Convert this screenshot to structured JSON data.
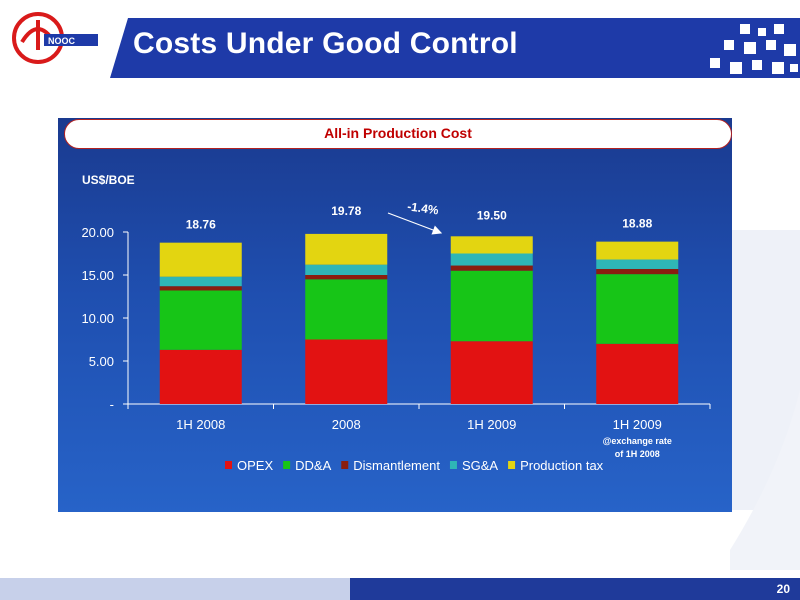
{
  "slide": {
    "title": "Costs Under Good Control",
    "page_number": "20"
  },
  "colors": {
    "title_bar": "#1e3aa8",
    "panel": "#1f4fb0",
    "opex": "#e21212",
    "dda": "#17c517",
    "dismantlement": "#8a1e0f",
    "sga": "#2fb6b6",
    "production_tax": "#e3d511"
  },
  "chart_data": {
    "type": "bar",
    "stacked": true,
    "title": "All-in Production Cost",
    "ylabel": "US$/BOE",
    "ylim": [
      0,
      20
    ],
    "yticks": [
      0,
      5,
      10,
      15,
      20
    ],
    "ytick_labels": [
      "-",
      "5.00",
      "10.00",
      "15.00",
      "20.00"
    ],
    "categories": [
      "1H 2008",
      "2008",
      "1H 2009",
      "1H 2009"
    ],
    "category_note": [
      "",
      "",
      "",
      "@exchange rate",
      "of 1H 2008"
    ],
    "totals": [
      "18.76",
      "19.78",
      "19.50",
      "18.88"
    ],
    "series": [
      {
        "name": "OPEX",
        "values": [
          6.3,
          7.5,
          7.3,
          7.0
        ]
      },
      {
        "name": "DD&A",
        "values": [
          6.9,
          7.0,
          8.2,
          8.1
        ]
      },
      {
        "name": "Dismantlement",
        "values": [
          0.5,
          0.5,
          0.6,
          0.6
        ]
      },
      {
        "name": "SG&A",
        "values": [
          1.1,
          1.2,
          1.4,
          1.1
        ]
      },
      {
        "name": "Production tax",
        "values": [
          3.96,
          3.58,
          2.0,
          2.08
        ]
      }
    ],
    "annotation": "-1.4%",
    "grid": false,
    "legend_position": "bottom"
  }
}
